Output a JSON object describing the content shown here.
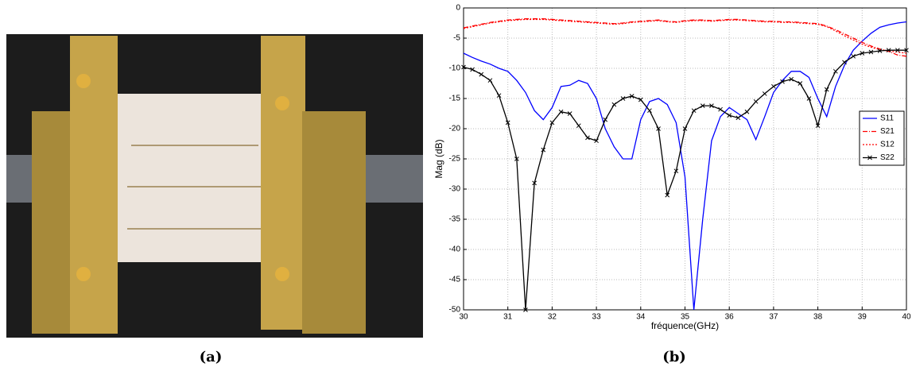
{
  "captions": [
    "(a)",
    "(b)"
  ],
  "chart_data": {
    "type": "line",
    "xlabel": "fréquence(GHz)",
    "ylabel": "Mag (dB)",
    "x": [
      30.0,
      30.2,
      30.4,
      30.6,
      30.8,
      31.0,
      31.2,
      31.4,
      31.6,
      31.8,
      32.0,
      32.2,
      32.4,
      32.6,
      32.8,
      33.0,
      33.2,
      33.4,
      33.6,
      33.8,
      34.0,
      34.2,
      34.4,
      34.6,
      34.8,
      35.0,
      35.2,
      35.4,
      35.6,
      35.8,
      36.0,
      36.2,
      36.4,
      36.6,
      36.8,
      37.0,
      37.2,
      37.4,
      37.6,
      37.8,
      38.0,
      38.2,
      38.4,
      38.6,
      38.8,
      39.0,
      39.2,
      39.4,
      39.6,
      39.8,
      40.0
    ],
    "series": [
      {
        "name": "S11",
        "color": "#0000ff",
        "linestyle": "solid",
        "values": [
          -7.5,
          -8.2,
          -8.8,
          -9.3,
          -10,
          -10.5,
          -12,
          -14,
          -17,
          -18.5,
          -16.5,
          -13,
          -12.8,
          -12,
          -12.5,
          -15,
          -20,
          -23,
          -25,
          -25,
          -18.5,
          -15.5,
          -15,
          -16,
          -19,
          -28,
          -50,
          -35,
          -22,
          -18,
          -16.5,
          -17.5,
          -18.5,
          -21.8,
          -18,
          -14,
          -12,
          -10.5,
          -10.5,
          -11.5,
          -15,
          -18,
          -13,
          -9.5,
          -7,
          -5.5,
          -4.2,
          -3.2,
          -2.8,
          -2.5,
          -2.3
        ]
      },
      {
        "name": "S21",
        "color": "#ff0000",
        "linestyle": "dashdot",
        "values": [
          -3.3,
          -3,
          -2.7,
          -2.4,
          -2.2,
          -2,
          -1.9,
          -1.8,
          -1.8,
          -1.8,
          -1.9,
          -2,
          -2.1,
          -2.2,
          -2.3,
          -2.4,
          -2.5,
          -2.6,
          -2.5,
          -2.3,
          -2.2,
          -2.1,
          -2,
          -2.2,
          -2.3,
          -2.1,
          -2,
          -2,
          -2.1,
          -2,
          -1.9,
          -1.9,
          -2,
          -2.1,
          -2.2,
          -2.2,
          -2.3,
          -2.3,
          -2.4,
          -2.5,
          -2.6,
          -3,
          -3.6,
          -4.3,
          -5,
          -5.7,
          -6.3,
          -6.8,
          -7.2,
          -7.8,
          -8
        ]
      },
      {
        "name": "S12",
        "color": "#ff0000",
        "linestyle": "dotted",
        "values": [
          -3.4,
          -3.1,
          -2.8,
          -2.5,
          -2.3,
          -2.1,
          -2,
          -1.9,
          -1.9,
          -1.9,
          -2,
          -2.1,
          -2.2,
          -2.3,
          -2.4,
          -2.5,
          -2.6,
          -2.7,
          -2.6,
          -2.4,
          -2.3,
          -2.2,
          -2.1,
          -2.3,
          -2.4,
          -2.2,
          -2.1,
          -2.1,
          -2.2,
          -2.1,
          -2,
          -2,
          -2.1,
          -2.2,
          -2.3,
          -2.3,
          -2.4,
          -2.4,
          -2.5,
          -2.6,
          -2.7,
          -3.1,
          -3.8,
          -4.6,
          -5.3,
          -6,
          -6.5,
          -6.9,
          -7.1,
          -7.3,
          -7.5
        ]
      },
      {
        "name": "S22",
        "color": "#000000",
        "linestyle": "solid",
        "marker": "x",
        "values": [
          -9.8,
          -10.2,
          -11,
          -12,
          -14.5,
          -19,
          -25,
          -50,
          -29,
          -23.5,
          -19,
          -17.2,
          -17.5,
          -19.5,
          -21.5,
          -22,
          -18.5,
          -16,
          -15,
          -14.6,
          -15.2,
          -17,
          -20,
          -31,
          -27,
          -20,
          -17,
          -16.2,
          -16.2,
          -16.8,
          -17.8,
          -18.2,
          -17.2,
          -15.5,
          -14.2,
          -13,
          -12.2,
          -11.8,
          -12.5,
          -15,
          -19.5,
          -13.5,
          -10.5,
          -9,
          -8,
          -7.5,
          -7.3,
          -7.1,
          -7,
          -7,
          -7
        ]
      }
    ],
    "xlim": [
      30,
      40
    ],
    "xticks": [
      30,
      31,
      32,
      33,
      34,
      35,
      36,
      37,
      38,
      39,
      40
    ],
    "ylim": [
      -50,
      0
    ],
    "yticks": [
      -50,
      -45,
      -40,
      -35,
      -30,
      -25,
      -20,
      -15,
      -10,
      -5,
      0
    ],
    "grid": true,
    "legend": "right"
  }
}
